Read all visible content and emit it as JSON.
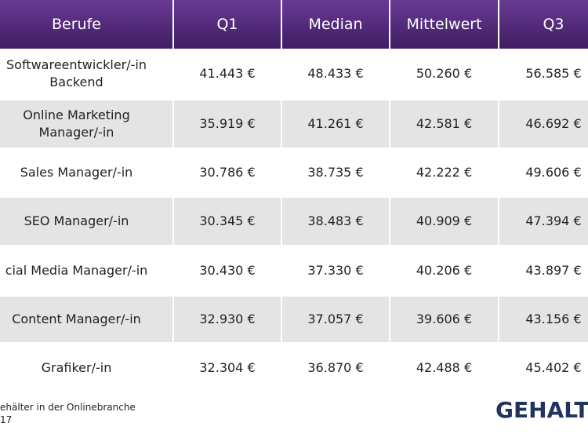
{
  "table": {
    "header": [
      "Berufe",
      "Q1",
      "Median",
      "Mittelwert",
      "Q3"
    ],
    "rows": [
      [
        [
          "Softwareentwickler/-in",
          "Backend"
        ],
        "41.443 €",
        "48.433 €",
        "50.260 €",
        "56.585 €"
      ],
      [
        [
          "Online Marketing",
          "Manager/-in"
        ],
        "35.919 €",
        "41.261 €",
        "42.581 €",
        "46.692 €"
      ],
      [
        [
          "Sales Manager/-in"
        ],
        "30.786 €",
        "38.735 €",
        "42.222 €",
        "49.606 €"
      ],
      [
        [
          "SEO Manager/-in"
        ],
        "30.345 €",
        "38.483 €",
        "40.909 €",
        "47.394 €"
      ],
      [
        [
          "cial Media Manager/-in"
        ],
        "30.430 €",
        "37.330 €",
        "40.206 €",
        "43.897 €"
      ],
      [
        [
          "Content Manager/-in"
        ],
        "32.930 €",
        "37.057 €",
        "39.606 €",
        "43.156 €"
      ],
      [
        [
          "Grafiker/-in"
        ],
        "32.304 €",
        "36.870 €",
        "42.488 €",
        "45.402 €"
      ]
    ]
  },
  "footer": {
    "lines": [
      "ehälter in der Onlinebranche",
      "17"
    ],
    "logo": "GEHALT.d"
  }
}
